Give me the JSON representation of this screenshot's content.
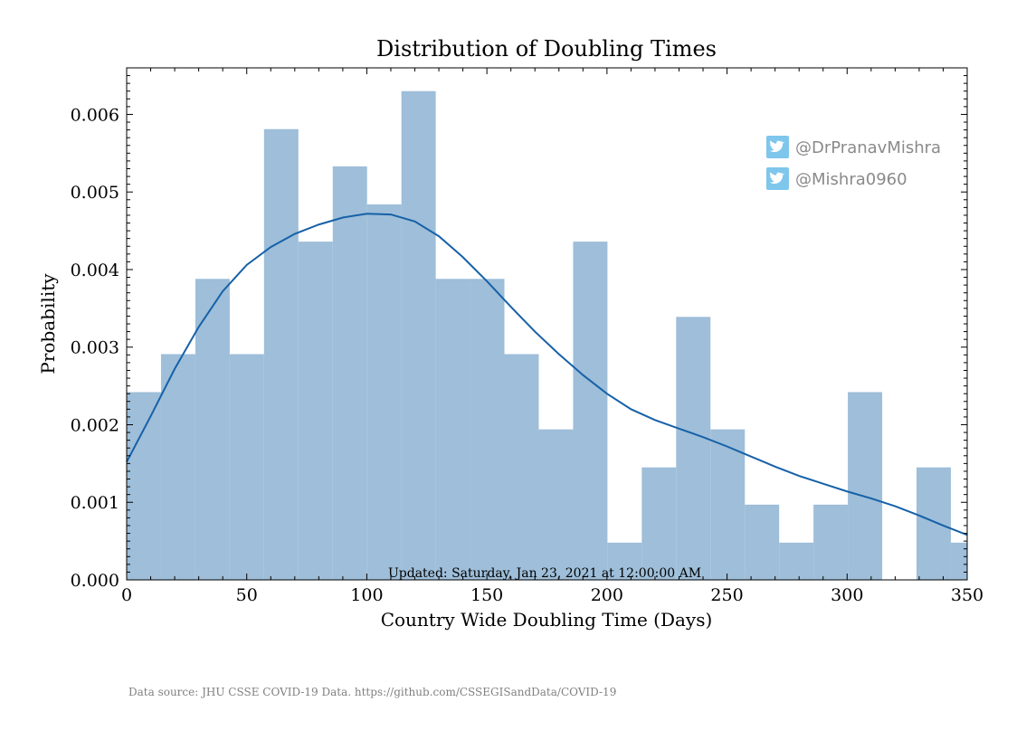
{
  "chart_data": {
    "type": "bar",
    "title": "Distribution of Doubling Times",
    "xlabel": "Country Wide Doubling Time (Days)",
    "ylabel": "Probability",
    "xlim": [
      0,
      350
    ],
    "ylim": [
      0,
      0.0066
    ],
    "xticks": [
      "0",
      "50",
      "100",
      "150",
      "200",
      "250",
      "300",
      "350"
    ],
    "yticks": [
      "0.000",
      "0.001",
      "0.002",
      "0.003",
      "0.004",
      "0.005",
      "0.006"
    ],
    "bin_width": 14.3,
    "bins": [
      {
        "x0": 0.0,
        "x1": 14.3,
        "value": 0.00242
      },
      {
        "x0": 14.3,
        "x1": 28.6,
        "value": 0.00291
      },
      {
        "x0": 28.6,
        "x1": 42.9,
        "value": 0.00388
      },
      {
        "x0": 42.9,
        "x1": 57.2,
        "value": 0.00291
      },
      {
        "x0": 57.2,
        "x1": 71.5,
        "value": 0.00581
      },
      {
        "x0": 71.5,
        "x1": 85.8,
        "value": 0.00436
      },
      {
        "x0": 85.8,
        "x1": 100.1,
        "value": 0.00533
      },
      {
        "x0": 100.1,
        "x1": 114.4,
        "value": 0.00484
      },
      {
        "x0": 114.4,
        "x1": 128.7,
        "value": 0.0063
      },
      {
        "x0": 128.7,
        "x1": 143.0,
        "value": 0.00388
      },
      {
        "x0": 143.0,
        "x1": 157.3,
        "value": 0.00388
      },
      {
        "x0": 157.3,
        "x1": 171.6,
        "value": 0.00291
      },
      {
        "x0": 171.6,
        "x1": 185.9,
        "value": 0.00194
      },
      {
        "x0": 185.9,
        "x1": 200.2,
        "value": 0.00436
      },
      {
        "x0": 200.2,
        "x1": 214.5,
        "value": 0.00048
      },
      {
        "x0": 214.5,
        "x1": 228.8,
        "value": 0.00145
      },
      {
        "x0": 228.8,
        "x1": 243.1,
        "value": 0.00339
      },
      {
        "x0": 243.1,
        "x1": 257.4,
        "value": 0.00194
      },
      {
        "x0": 257.4,
        "x1": 271.7,
        "value": 0.00097
      },
      {
        "x0": 271.7,
        "x1": 286.0,
        "value": 0.00048
      },
      {
        "x0": 286.0,
        "x1": 300.3,
        "value": 0.00097
      },
      {
        "x0": 300.3,
        "x1": 314.6,
        "value": 0.00242
      },
      {
        "x0": 314.6,
        "x1": 328.9,
        "value": 0.0
      },
      {
        "x0": 328.9,
        "x1": 343.2,
        "value": 0.00145
      },
      {
        "x0": 343.2,
        "x1": 357.5,
        "value": 0.00048
      }
    ],
    "kde": {
      "x": [
        0,
        10,
        20,
        30,
        40,
        50,
        60,
        70,
        80,
        90,
        100,
        110,
        120,
        130,
        140,
        150,
        160,
        170,
        180,
        190,
        200,
        210,
        220,
        230,
        240,
        250,
        260,
        270,
        280,
        290,
        300,
        310,
        320,
        330,
        340,
        350
      ],
      "y": [
        0.00152,
        0.00211,
        0.00272,
        0.00326,
        0.00372,
        0.00406,
        0.00429,
        0.00446,
        0.00458,
        0.00467,
        0.00472,
        0.00471,
        0.00462,
        0.00443,
        0.00416,
        0.00385,
        0.00352,
        0.0032,
        0.00291,
        0.00264,
        0.0024,
        0.0022,
        0.00206,
        0.00195,
        0.00184,
        0.00172,
        0.00159,
        0.00146,
        0.00134,
        0.00124,
        0.00114,
        0.00105,
        0.00095,
        0.00083,
        0.0007,
        0.00058
      ]
    },
    "colors": {
      "bars": "#9ebed9",
      "kde_line": "#1661a8",
      "twitter_badge": "#7fc6ec",
      "handle_text": "#8a8a8a"
    },
    "legend_placement": "top-right",
    "grid": false
  },
  "annotations": {
    "updated": "Updated: Saturday, Jan 23, 2021 at 12:00:00 AM",
    "handles": [
      {
        "icon": "twitter-icon",
        "text": "@DrPranavMishra"
      },
      {
        "icon": "twitter-icon",
        "text": "@Mishra0960"
      }
    ]
  },
  "footer": {
    "source": "Data source: JHU CSSE COVID-19 Data. https://github.com/CSSEGISandData/COVID-19"
  }
}
